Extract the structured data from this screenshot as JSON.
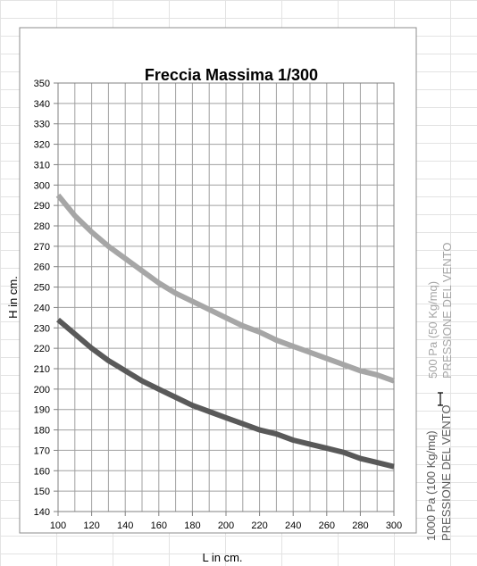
{
  "chart_data": {
    "type": "line",
    "title": "Freccia Massima 1/300",
    "xlabel": "L in cm.",
    "ylabel": "H  in cm.",
    "xlim": [
      100,
      300
    ],
    "ylim": [
      140,
      350
    ],
    "x_ticks": [
      100,
      120,
      140,
      160,
      180,
      200,
      220,
      240,
      260,
      280,
      300
    ],
    "y_ticks": [
      140,
      150,
      160,
      170,
      180,
      190,
      200,
      210,
      220,
      230,
      240,
      250,
      260,
      270,
      280,
      290,
      300,
      310,
      320,
      330,
      340,
      350
    ],
    "grid": true,
    "series": [
      {
        "name": "500 Pa (50 Kg/mq) PRESSIONE DEL VENTO",
        "color": "#a6a6a6",
        "x": [
          100,
          110,
          120,
          130,
          140,
          150,
          160,
          170,
          180,
          190,
          200,
          210,
          220,
          230,
          240,
          250,
          260,
          270,
          280,
          290,
          300
        ],
        "y": [
          295,
          285,
          277,
          270,
          264,
          258,
          252,
          247,
          243,
          239,
          235,
          231,
          228,
          224,
          221,
          218,
          215,
          212,
          209,
          207,
          204
        ]
      },
      {
        "name": "1000 Pa (100 Kg/mq) PRESSIONE DEL VENTO",
        "color": "#595959",
        "x": [
          100,
          110,
          120,
          130,
          140,
          150,
          160,
          170,
          180,
          190,
          200,
          210,
          220,
          230,
          240,
          250,
          260,
          270,
          280,
          290,
          300
        ],
        "y": [
          234,
          227,
          220,
          214,
          209,
          204,
          200,
          196,
          192,
          189,
          186,
          183,
          180,
          178,
          175,
          173,
          171,
          169,
          166,
          164,
          162
        ]
      }
    ]
  },
  "right_labels": {
    "series_1_line1": "500 Pa (50 Kg/mq)",
    "series_1_line2": "PRESSIONE DEL VENTO",
    "series_2_line1": "1000 Pa (100 Kg/mq)",
    "series_2_line2": "PRESSIONE DEL VENTO"
  }
}
